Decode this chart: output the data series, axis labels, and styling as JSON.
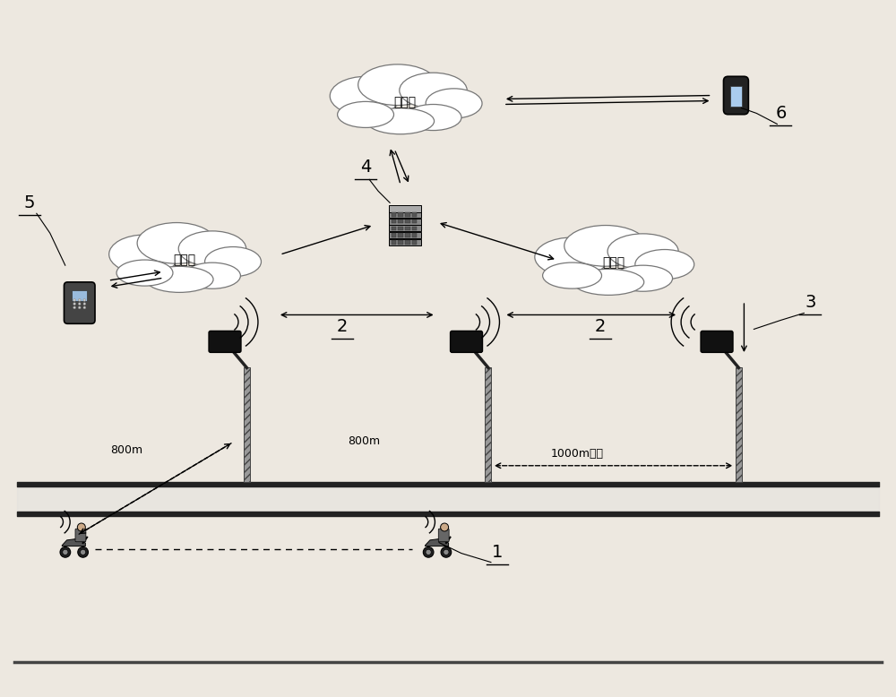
{
  "bg_color": "#ede8e0",
  "cloud_text": "互联网",
  "label1": "1",
  "label2": "2",
  "label3": "3",
  "label4": "4",
  "label5": "5",
  "label6": "6",
  "dist800_left": "800m",
  "dist800_mid": "800m",
  "dist1000": "1000m以内",
  "xlim": [
    0,
    10
  ],
  "ylim": [
    0,
    7.78
  ]
}
